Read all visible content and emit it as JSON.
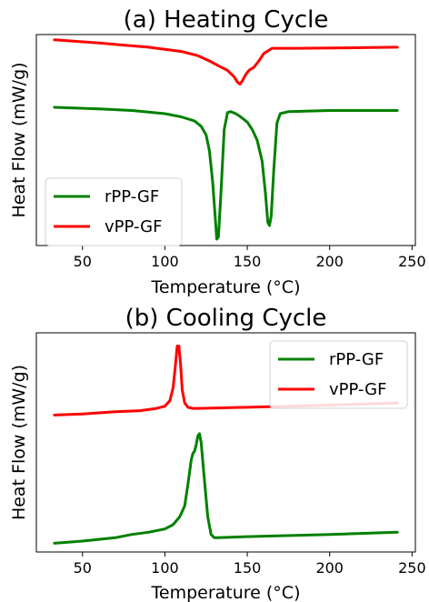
{
  "chart_data": [
    {
      "type": "line",
      "title": "(a) Heating Cycle",
      "xlabel": "Temperature (°C)",
      "ylabel": "Heat Flow (mW/g)",
      "xlim": [
        22,
        252
      ],
      "ylim": [
        0,
        1
      ],
      "xticks": [
        50,
        100,
        150,
        200,
        250
      ],
      "yticks_shown": false,
      "grid": false,
      "legend_position": "lower-left",
      "legend": [
        {
          "label": "rPP-GF",
          "color": "#008000"
        },
        {
          "label": "vPP-GF",
          "color": "#ff0000"
        }
      ],
      "series": [
        {
          "name": "rPP-GF",
          "color": "#008000",
          "x": [
            33,
            60,
            80,
            100,
            110,
            118,
            122,
            125,
            127,
            129,
            130.5,
            131.5,
            132.5,
            134,
            136,
            138,
            140,
            143,
            146,
            150,
            153,
            156,
            159,
            161,
            162.5,
            163.5,
            164.5,
            166,
            168,
            170,
            175,
            200,
            241
          ],
          "y": [
            0.655,
            0.648,
            0.64,
            0.625,
            0.61,
            0.59,
            0.565,
            0.525,
            0.45,
            0.3,
            0.14,
            0.03,
            0.04,
            0.25,
            0.55,
            0.63,
            0.635,
            0.625,
            0.61,
            0.585,
            0.55,
            0.5,
            0.4,
            0.25,
            0.11,
            0.095,
            0.14,
            0.35,
            0.58,
            0.625,
            0.635,
            0.64,
            0.64
          ]
        },
        {
          "name": "vPP-GF",
          "color": "#ff0000",
          "x": [
            33,
            60,
            90,
            110,
            120,
            127,
            133,
            138,
            142,
            144,
            145.5,
            147,
            149,
            151,
            154,
            157,
            160,
            165,
            180,
            210,
            241
          ],
          "y": [
            0.975,
            0.96,
            0.94,
            0.92,
            0.9,
            0.875,
            0.85,
            0.83,
            0.8,
            0.775,
            0.765,
            0.78,
            0.81,
            0.83,
            0.845,
            0.875,
            0.91,
            0.935,
            0.935,
            0.937,
            0.94
          ]
        }
      ]
    },
    {
      "type": "line",
      "title": "(b) Cooling Cycle",
      "xlabel": "Temperature (°C)",
      "ylabel": "Heat Flow (mW/g)",
      "xlim": [
        22,
        252
      ],
      "ylim": [
        0,
        1
      ],
      "xticks": [
        50,
        100,
        150,
        200,
        250
      ],
      "yticks_shown": false,
      "grid": false,
      "legend_position": "top-right",
      "legend": [
        {
          "label": "rPP-GF",
          "color": "#008000"
        },
        {
          "label": "vPP-GF",
          "color": "#ff0000"
        }
      ],
      "series": [
        {
          "name": "rPP-GF",
          "color": "#008000",
          "x": [
            33,
            50,
            70,
            80,
            90,
            100,
            105,
            109,
            112,
            114,
            116,
            117,
            118,
            119,
            120,
            121,
            122,
            124,
            126,
            128,
            130,
            132,
            150,
            200,
            241
          ],
          "y": [
            0.04,
            0.05,
            0.065,
            0.08,
            0.09,
            0.105,
            0.125,
            0.16,
            0.21,
            0.31,
            0.42,
            0.45,
            0.46,
            0.49,
            0.53,
            0.54,
            0.5,
            0.33,
            0.16,
            0.08,
            0.065,
            0.065,
            0.07,
            0.08,
            0.09
          ]
        },
        {
          "name": "vPP-GF",
          "color": "#ff0000",
          "x": [
            33,
            50,
            70,
            85,
            95,
            100,
            103,
            105,
            106.5,
            107.5,
            108.5,
            109.5,
            110.5,
            112,
            114,
            117,
            120,
            150,
            200,
            241
          ],
          "y": [
            0.625,
            0.63,
            0.64,
            0.645,
            0.655,
            0.665,
            0.69,
            0.75,
            0.86,
            0.94,
            0.94,
            0.86,
            0.74,
            0.68,
            0.66,
            0.655,
            0.655,
            0.66,
            0.67,
            0.68
          ]
        }
      ]
    }
  ]
}
